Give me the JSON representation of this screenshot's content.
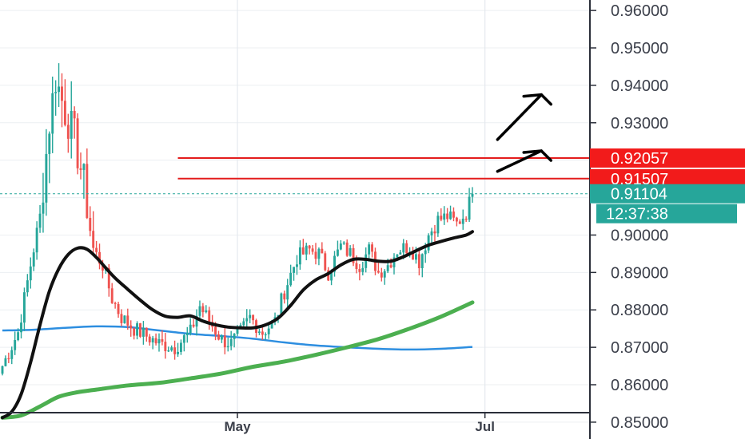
{
  "chart_data": {
    "type": "candlestick",
    "title": "",
    "y_axis": {
      "position": "right",
      "ylim": [
        0.8455,
        0.9628
      ],
      "ticks": [
        "0.96000",
        "0.95000",
        "0.94000",
        "0.93000",
        "0.92000",
        "0.91000",
        "0.90000",
        "0.89000",
        "0.88000",
        "0.87000",
        "0.86000",
        "0.85000"
      ]
    },
    "x_axis": {
      "ticks": [
        {
          "label": "May",
          "index": 75
        },
        {
          "label": "Jul",
          "index": 154
        }
      ]
    },
    "grid": true,
    "colors": {
      "up": "#26a69a",
      "down": "#ef5350",
      "ma_fast": "#111111",
      "ma_mid": "#4caf50",
      "ma_slow": "#2d8ee0",
      "level": "#e41c1c",
      "current": "#26a69a",
      "annotation": "#000000"
    },
    "price_tags": [
      {
        "label": "0.92057",
        "value": 0.92057,
        "color": "#f21b1b"
      },
      {
        "label": "0.91507",
        "value": 0.91507,
        "color": "#f21b1b"
      },
      {
        "label": "0.91104",
        "value": 0.91104,
        "color": "#26a69a"
      }
    ],
    "countdown": {
      "label": "12:37:38",
      "color": "#26a69a"
    },
    "horizontal_levels": [
      {
        "value": 0.92057,
        "style": "solid"
      },
      {
        "value": 0.91507,
        "style": "solid"
      },
      {
        "value": 0.91104,
        "style": "dashed"
      }
    ],
    "annotations": [
      {
        "type": "arrow",
        "from": [
          158,
          0.917
        ],
        "to": [
          172,
          0.9225
        ]
      },
      {
        "type": "arrow",
        "from": [
          158,
          0.9255
        ],
        "to": [
          172,
          0.9375
        ]
      }
    ],
    "anchors": [
      [
        0,
        0.865
      ],
      [
        5,
        0.874
      ],
      [
        9,
        0.892
      ],
      [
        12,
        0.905
      ],
      [
        15,
        0.93
      ],
      [
        17,
        0.942
      ],
      [
        20,
        0.933
      ],
      [
        23,
        0.926
      ],
      [
        26,
        0.914
      ],
      [
        29,
        0.896
      ],
      [
        32,
        0.892
      ],
      [
        35,
        0.883
      ],
      [
        38,
        0.878
      ],
      [
        42,
        0.875
      ],
      [
        46,
        0.873
      ],
      [
        50,
        0.871
      ],
      [
        55,
        0.87
      ],
      [
        60,
        0.874
      ],
      [
        63,
        0.881
      ],
      [
        66,
        0.877
      ],
      [
        70,
        0.872
      ],
      [
        73,
        0.871
      ],
      [
        76,
        0.874
      ],
      [
        79,
        0.878
      ],
      [
        83,
        0.874
      ],
      [
        87,
        0.877
      ],
      [
        90,
        0.885
      ],
      [
        94,
        0.894
      ],
      [
        98,
        0.896
      ],
      [
        101,
        0.895
      ],
      [
        104,
        0.89
      ],
      [
        108,
        0.897
      ],
      [
        111,
        0.895
      ],
      [
        114,
        0.892
      ],
      [
        117,
        0.896
      ],
      [
        120,
        0.89
      ],
      [
        123,
        0.892
      ],
      [
        126,
        0.896
      ],
      [
        130,
        0.897
      ],
      [
        133,
        0.893
      ],
      [
        136,
        0.9
      ],
      [
        139,
        0.904
      ],
      [
        142,
        0.905
      ],
      [
        145,
        0.903
      ],
      [
        148,
        0.906
      ],
      [
        150,
        0.911
      ]
    ],
    "ma_fast": [
      [
        0,
        0.8512
      ],
      [
        3,
        0.8528
      ],
      [
        6,
        0.8575
      ],
      [
        9,
        0.866
      ],
      [
        12,
        0.876
      ],
      [
        15,
        0.885
      ],
      [
        18,
        0.891
      ],
      [
        21,
        0.8948
      ],
      [
        24,
        0.8965
      ],
      [
        27,
        0.8962
      ],
      [
        30,
        0.894
      ],
      [
        33,
        0.8912
      ],
      [
        36,
        0.8885
      ],
      [
        40,
        0.8855
      ],
      [
        44,
        0.8826
      ],
      [
        48,
        0.88
      ],
      [
        52,
        0.8783
      ],
      [
        56,
        0.878
      ],
      [
        60,
        0.8784
      ],
      [
        64,
        0.877
      ],
      [
        68,
        0.876
      ],
      [
        72,
        0.8754
      ],
      [
        76,
        0.8752
      ],
      [
        80,
        0.8752
      ],
      [
        84,
        0.876
      ],
      [
        88,
        0.8778
      ],
      [
        92,
        0.8812
      ],
      [
        96,
        0.8853
      ],
      [
        100,
        0.888
      ],
      [
        104,
        0.8897
      ],
      [
        108,
        0.892
      ],
      [
        112,
        0.8935
      ],
      [
        116,
        0.8935
      ],
      [
        120,
        0.893
      ],
      [
        124,
        0.893
      ],
      [
        128,
        0.8942
      ],
      [
        132,
        0.8958
      ],
      [
        136,
        0.8973
      ],
      [
        140,
        0.8983
      ],
      [
        144,
        0.8992
      ],
      [
        148,
        0.9
      ],
      [
        150,
        0.9009
      ]
    ],
    "ma_mid": [
      [
        0,
        0.8512
      ],
      [
        6,
        0.8518
      ],
      [
        12,
        0.8542
      ],
      [
        18,
        0.8568
      ],
      [
        24,
        0.858
      ],
      [
        30,
        0.8587
      ],
      [
        40,
        0.8598
      ],
      [
        50,
        0.8605
      ],
      [
        60,
        0.8617
      ],
      [
        70,
        0.863
      ],
      [
        80,
        0.8648
      ],
      [
        90,
        0.8662
      ],
      [
        100,
        0.868
      ],
      [
        110,
        0.87
      ],
      [
        120,
        0.8722
      ],
      [
        130,
        0.875
      ],
      [
        140,
        0.8782
      ],
      [
        150,
        0.882
      ]
    ],
    "ma_slow": [
      [
        0,
        0.8745
      ],
      [
        10,
        0.8747
      ],
      [
        20,
        0.8752
      ],
      [
        30,
        0.8756
      ],
      [
        40,
        0.8754
      ],
      [
        50,
        0.8745
      ],
      [
        60,
        0.8736
      ],
      [
        70,
        0.873
      ],
      [
        80,
        0.8723
      ],
      [
        90,
        0.8713
      ],
      [
        100,
        0.8705
      ],
      [
        110,
        0.87
      ],
      [
        120,
        0.8696
      ],
      [
        130,
        0.8694
      ],
      [
        140,
        0.8696
      ],
      [
        150,
        0.8701
      ]
    ]
  }
}
